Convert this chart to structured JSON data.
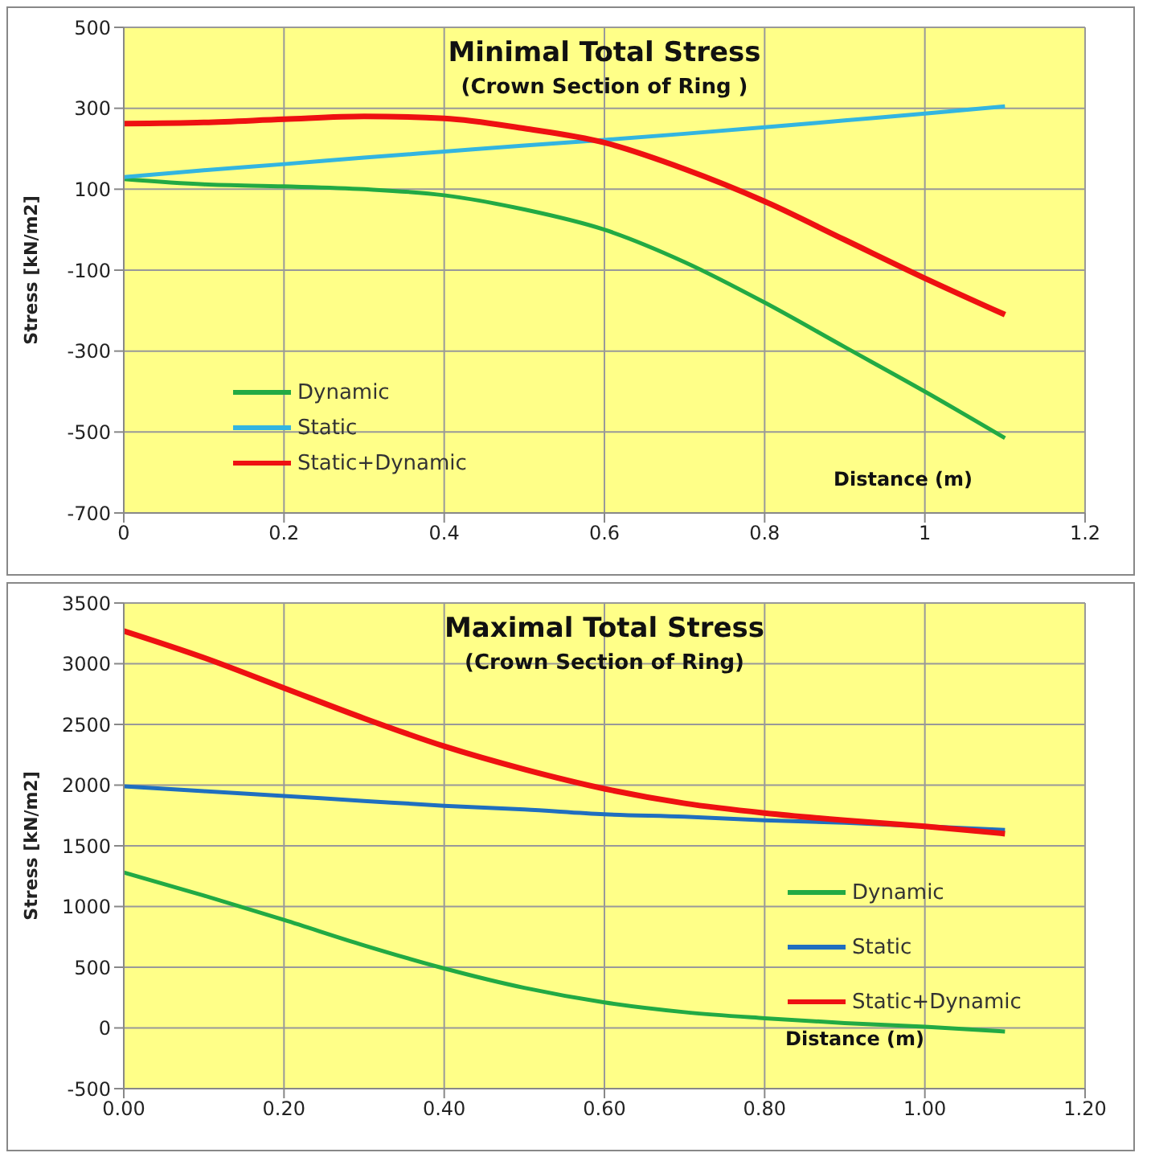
{
  "chart_data": [
    {
      "type": "line",
      "title": "Minimal Total Stress",
      "subtitle": "(Crown Section of Ring )",
      "xlabel": "Distance (m)",
      "ylabel": "Stress [kN/m2]",
      "x": [
        0,
        0.1,
        0.2,
        0.3,
        0.4,
        0.5,
        0.6,
        0.7,
        0.8,
        0.9,
        1.0,
        1.1
      ],
      "series": [
        {
          "name": "Dynamic",
          "color": "#22aa44",
          "values": [
            125,
            112,
            107,
            100,
            85,
            50,
            0,
            -80,
            -180,
            -290,
            -400,
            -515
          ]
        },
        {
          "name": "Static",
          "color": "#33b5e0",
          "values": [
            130,
            147,
            162,
            178,
            193,
            208,
            222,
            237,
            253,
            270,
            287,
            305
          ]
        },
        {
          "name": "Static+Dynamic",
          "color": "#ee1111",
          "values": [
            262,
            265,
            273,
            280,
            275,
            250,
            215,
            150,
            70,
            -25,
            -120,
            -210
          ]
        }
      ],
      "xlim": [
        0,
        1.2
      ],
      "xticks": [
        0,
        0.2,
        0.4,
        0.6,
        0.8,
        1,
        1.2
      ],
      "ylim": [
        -700,
        500
      ],
      "yticks": [
        -700,
        -500,
        -300,
        -100,
        100,
        300,
        500
      ],
      "grid": true,
      "legend": "bottom left",
      "marker": "none"
    },
    {
      "type": "line",
      "title": "Maximal Total Stress",
      "subtitle": "(Crown Section of Ring)",
      "xlabel": "Distance (m)",
      "ylabel": "Stress [kN/m2]",
      "x": [
        0,
        0.1,
        0.2,
        0.3,
        0.4,
        0.5,
        0.6,
        0.7,
        0.8,
        0.9,
        1.0,
        1.1
      ],
      "series": [
        {
          "name": "Dynamic",
          "color": "#22aa44",
          "values": [
            1280,
            1090,
            890,
            680,
            490,
            330,
            210,
            130,
            80,
            40,
            10,
            -30
          ]
        },
        {
          "name": "Static",
          "color": "#1f6fbf",
          "values": [
            1990,
            1950,
            1910,
            1870,
            1830,
            1800,
            1760,
            1740,
            1710,
            1690,
            1660,
            1630
          ]
        },
        {
          "name": "Static+Dynamic",
          "color": "#ee1111",
          "values": [
            3270,
            3050,
            2800,
            2550,
            2320,
            2130,
            1970,
            1850,
            1770,
            1710,
            1660,
            1600
          ]
        }
      ],
      "xlim": [
        0,
        1.2
      ],
      "xticks": [
        {
          "value": 0,
          "label": "0.00"
        },
        {
          "value": 0.2,
          "label": "0.20"
        },
        {
          "value": 0.4,
          "label": "0.40"
        },
        {
          "value": 0.6,
          "label": "0.60"
        },
        {
          "value": 0.8,
          "label": "0.80"
        },
        {
          "value": 1,
          "label": "1.00"
        },
        {
          "value": 1.2,
          "label": "1.20"
        }
      ],
      "ylim": [
        -500,
        3500
      ],
      "yticks": [
        -500,
        0,
        500,
        1000,
        1500,
        2000,
        2500,
        3000,
        3500
      ],
      "grid": true,
      "legend": "right",
      "marker": "none"
    }
  ]
}
